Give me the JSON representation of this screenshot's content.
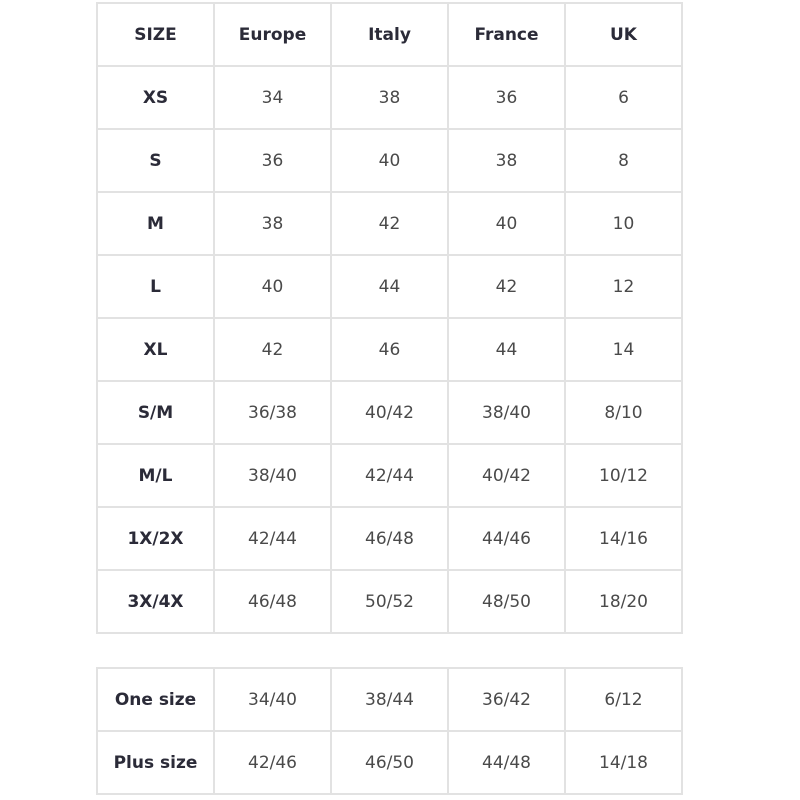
{
  "main_table": {
    "headers": [
      "SIZE",
      "Europe",
      "Italy",
      "France",
      "UK"
    ],
    "rows": [
      [
        "XS",
        "34",
        "38",
        "36",
        "6"
      ],
      [
        "S",
        "36",
        "40",
        "38",
        "8"
      ],
      [
        "M",
        "38",
        "42",
        "40",
        "10"
      ],
      [
        "L",
        "40",
        "44",
        "42",
        "12"
      ],
      [
        "XL",
        "42",
        "46",
        "44",
        "14"
      ],
      [
        "S/M",
        "36/38",
        "40/42",
        "38/40",
        "8/10"
      ],
      [
        "M/L",
        "38/40",
        "42/44",
        "40/42",
        "10/12"
      ],
      [
        "1X/2X",
        "42/44",
        "46/48",
        "44/46",
        "14/16"
      ],
      [
        "3X/4X",
        "46/48",
        "50/52",
        "48/50",
        "18/20"
      ]
    ]
  },
  "special_table": {
    "rows": [
      [
        "One size",
        "34/40",
        "38/44",
        "36/42",
        "6/12"
      ],
      [
        "Plus size",
        "42/46",
        "46/50",
        "44/48",
        "14/18"
      ]
    ]
  }
}
